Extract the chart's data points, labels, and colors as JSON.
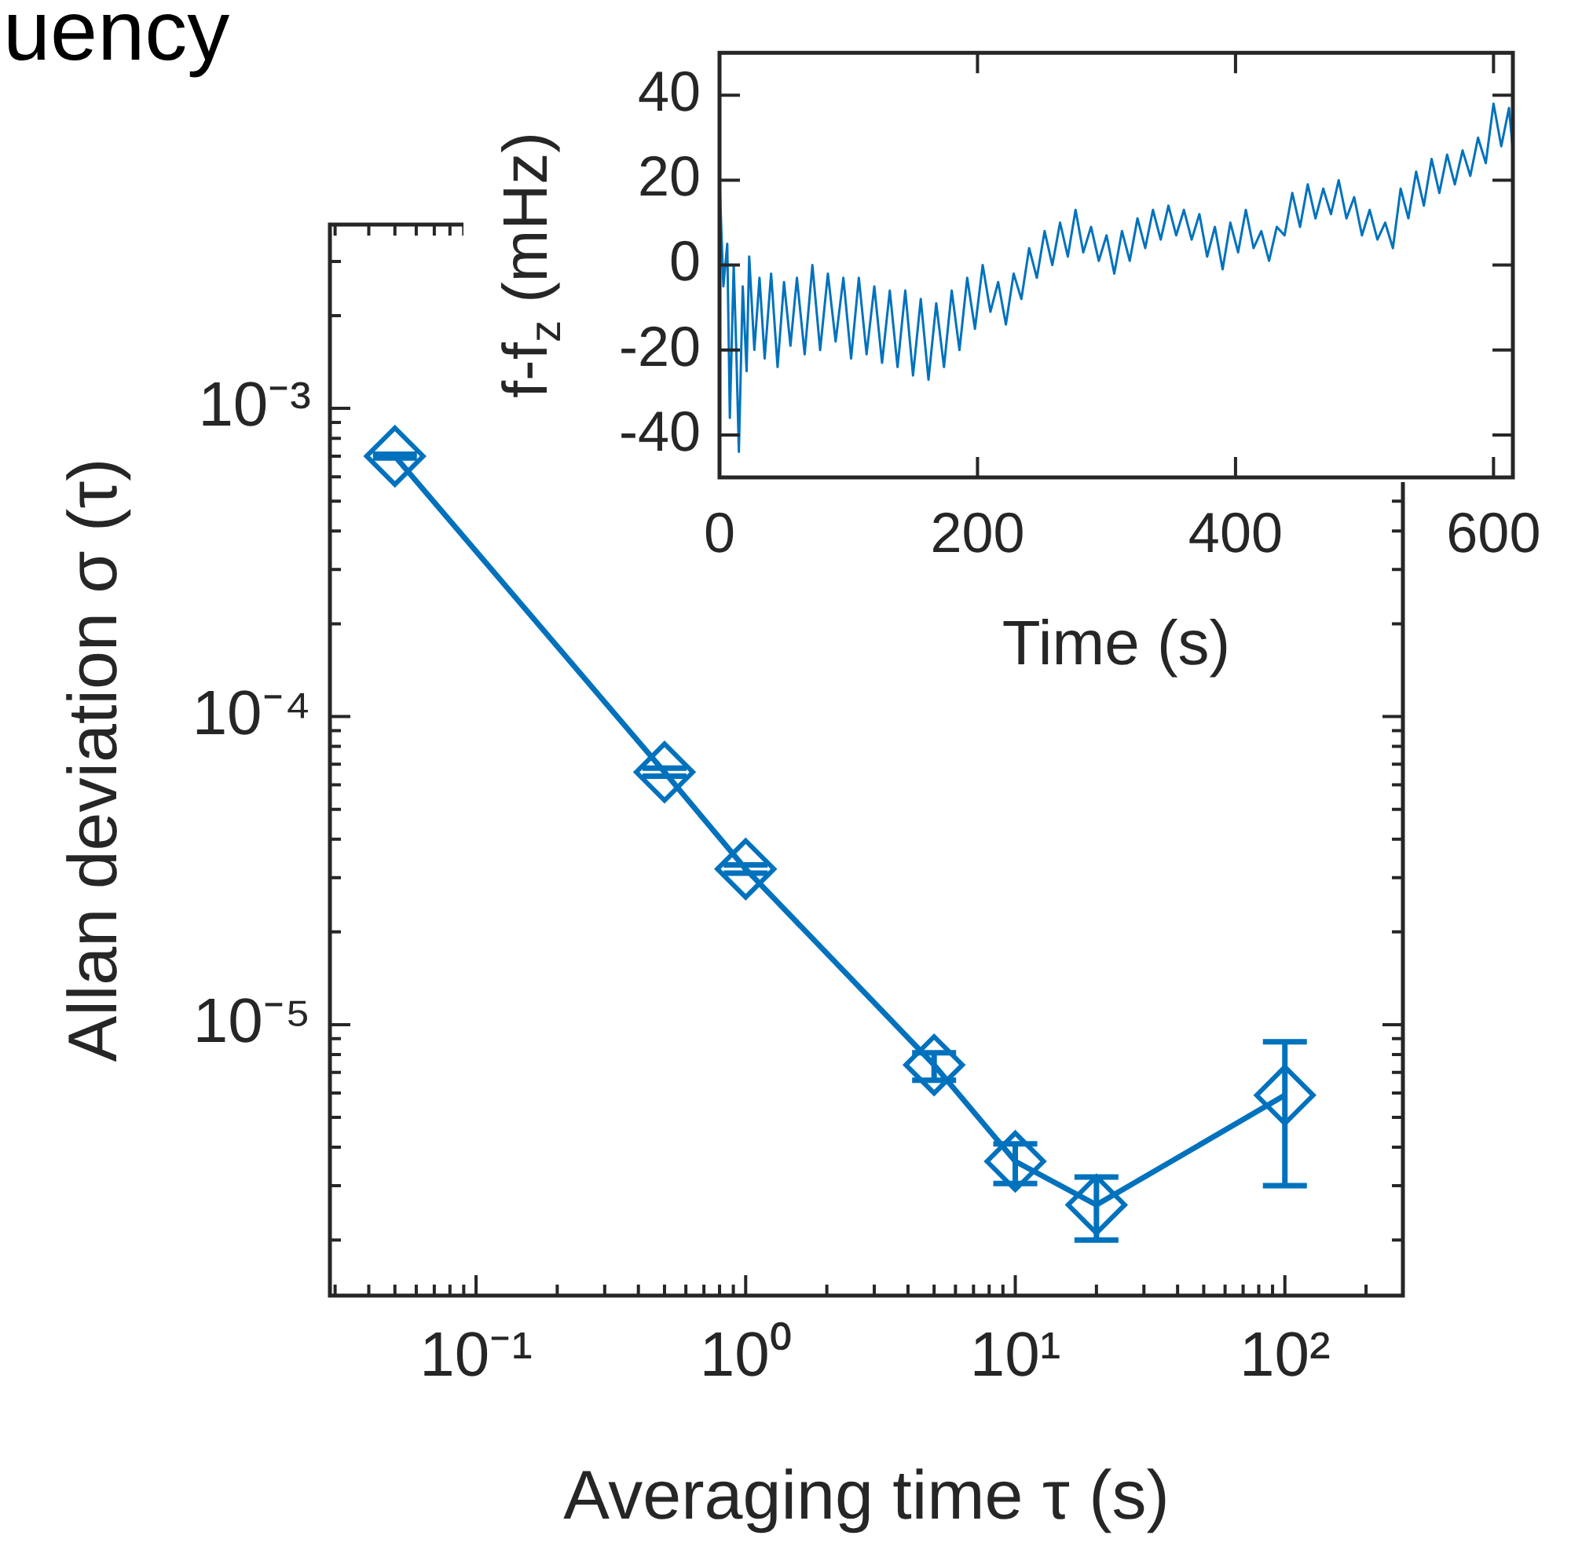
{
  "chart_data": [
    {
      "type": "line",
      "xlabel": "Averaging time τ (s)",
      "ylabel": "Allan deviation σ (τ)",
      "annotations": [
        "uency"
      ],
      "x": [
        0.05,
        0.5,
        1,
        5,
        10,
        20,
        100
      ],
      "series": [
        {
          "color": "#0072bd",
          "values": [
            0.0007,
            6.6e-05,
            3.2e-05,
            7.4e-06,
            3.6e-06,
            2.6e-06,
            5.9e-06
          ],
          "errors": [
            [
              0.00069,
              0.00071
            ],
            [
              6.4e-05,
              6.8e-05
            ],
            [
              3.1e-05,
              3.3e-05
            ],
            [
              6.6e-06,
              8.1e-06
            ],
            [
              3.05e-06,
              4.1e-06
            ],
            [
              2e-06,
              3.2e-06
            ],
            [
              3e-06,
              8.8e-06
            ]
          ]
        }
      ],
      "log": "xy",
      "marker": "diamond",
      "grid": false,
      "legend": false,
      "xlim": [
        0.0287,
        274
      ],
      "ylim": [
        1.32e-06,
        0.00395
      ],
      "xticks": [
        {
          "value": 0.03,
          "label": null
        },
        {
          "value": 0.04,
          "label": null
        },
        {
          "value": 0.05,
          "label": null
        },
        {
          "value": 0.06,
          "label": null
        },
        {
          "value": 0.07,
          "label": null
        },
        {
          "value": 0.08,
          "label": null
        },
        {
          "value": 0.09,
          "label": null
        },
        {
          "value": 0.1,
          "label": "10⁻¹"
        },
        {
          "value": 0.2,
          "label": null
        },
        {
          "value": 0.3,
          "label": null
        },
        {
          "value": 0.4,
          "label": null
        },
        {
          "value": 0.5,
          "label": null
        },
        {
          "value": 0.6,
          "label": null
        },
        {
          "value": 0.7,
          "label": null
        },
        {
          "value": 0.8,
          "label": null
        },
        {
          "value": 0.9,
          "label": null
        },
        {
          "value": 1,
          "label": "10⁰"
        },
        {
          "value": 2,
          "label": null
        },
        {
          "value": 3,
          "label": null
        },
        {
          "value": 4,
          "label": null
        },
        {
          "value": 5,
          "label": null
        },
        {
          "value": 6,
          "label": null
        },
        {
          "value": 7,
          "label": null
        },
        {
          "value": 8,
          "label": null
        },
        {
          "value": 9,
          "label": null
        },
        {
          "value": 10,
          "label": "10¹"
        },
        {
          "value": 20,
          "label": null
        },
        {
          "value": 30,
          "label": null
        },
        {
          "value": 40,
          "label": null
        },
        {
          "value": 50,
          "label": null
        },
        {
          "value": 60,
          "label": null
        },
        {
          "value": 70,
          "label": null
        },
        {
          "value": 80,
          "label": null
        },
        {
          "value": 90,
          "label": null
        },
        {
          "value": 100,
          "label": "10²"
        },
        {
          "value": 200,
          "label": null
        }
      ],
      "yticks": [
        {
          "value": 2e-06,
          "label": null
        },
        {
          "value": 3e-06,
          "label": null
        },
        {
          "value": 4e-06,
          "label": null
        },
        {
          "value": 5e-06,
          "label": null
        },
        {
          "value": 6e-06,
          "label": null
        },
        {
          "value": 7e-06,
          "label": null
        },
        {
          "value": 8e-06,
          "label": null
        },
        {
          "value": 9e-06,
          "label": null
        },
        {
          "value": 1e-05,
          "label": "10⁻⁵"
        },
        {
          "value": 2e-05,
          "label": null
        },
        {
          "value": 3e-05,
          "label": null
        },
        {
          "value": 4e-05,
          "label": null
        },
        {
          "value": 5e-05,
          "label": null
        },
        {
          "value": 6e-05,
          "label": null
        },
        {
          "value": 7e-05,
          "label": null
        },
        {
          "value": 8e-05,
          "label": null
        },
        {
          "value": 9e-05,
          "label": null
        },
        {
          "value": 0.0001,
          "label": "10⁻⁴"
        },
        {
          "value": 0.0002,
          "label": null
        },
        {
          "value": 0.0003,
          "label": null
        },
        {
          "value": 0.0004,
          "label": null
        },
        {
          "value": 0.0005,
          "label": null
        },
        {
          "value": 0.0006,
          "label": null
        },
        {
          "value": 0.0007,
          "label": null
        },
        {
          "value": 0.0008,
          "label": null
        },
        {
          "value": 0.0009,
          "label": null
        },
        {
          "value": 0.001,
          "label": "10⁻³"
        },
        {
          "value": 0.002,
          "label": null
        },
        {
          "value": 0.003,
          "label": null
        }
      ]
    },
    {
      "type": "line",
      "xlabel": "Time (s)",
      "ylabel": "f-f$_{z}$ (mHz)",
      "marker": "none",
      "grid": false,
      "legend": false,
      "xlim": [
        0,
        615
      ],
      "ylim": [
        -50,
        50
      ],
      "xticks": [
        0,
        200,
        400,
        600
      ],
      "yticks": [
        -40,
        -20,
        0,
        20,
        40
      ],
      "x": [
        0,
        3,
        6,
        8,
        11,
        13,
        15,
        18,
        21,
        23,
        27,
        31,
        35,
        40,
        45,
        50,
        55,
        60,
        66,
        72,
        78,
        84,
        90,
        96,
        102,
        108,
        114,
        120,
        126,
        132,
        138,
        144,
        150,
        156,
        162,
        168,
        174,
        180,
        186,
        192,
        198,
        204,
        210,
        216,
        222,
        228,
        234,
        240,
        246,
        252,
        258,
        264,
        270,
        276,
        282,
        288,
        294,
        300,
        306,
        312,
        318,
        324,
        330,
        336,
        342,
        348,
        354,
        360,
        366,
        372,
        378,
        384,
        390,
        396,
        402,
        408,
        414,
        420,
        426,
        432,
        438,
        444,
        450,
        456,
        462,
        468,
        474,
        480,
        486,
        492,
        498,
        504,
        510,
        516,
        522,
        528,
        534,
        540,
        546,
        552,
        558,
        564,
        570,
        576,
        582,
        588,
        594,
        600,
        606,
        612,
        615
      ],
      "series": [
        {
          "color": "#0072bd",
          "values": [
            20,
            -5,
            5,
            -36,
            0,
            -20,
            -44,
            -5,
            -25,
            2,
            -20,
            -3,
            -22,
            -2,
            -24,
            -4,
            -19,
            -3,
            -21,
            0,
            -20,
            -2,
            -18,
            -3,
            -22,
            -3,
            -21,
            -5,
            -23,
            -6,
            -24,
            -6,
            -26,
            -8,
            -27,
            -9,
            -24,
            -6,
            -20,
            -3,
            -15,
            0,
            -11,
            -4,
            -14,
            -2,
            -8,
            4,
            -3,
            8,
            0,
            10,
            2,
            13,
            3,
            9,
            1,
            7,
            -2,
            8,
            1,
            11,
            4,
            13,
            6,
            14,
            7,
            13,
            6,
            12,
            2,
            9,
            -1,
            10,
            3,
            13,
            4,
            8,
            1,
            9,
            7,
            17,
            9,
            19,
            11,
            18,
            12,
            20,
            11,
            16,
            7,
            13,
            6,
            10,
            4,
            18,
            11,
            22,
            14,
            25,
            17,
            26,
            19,
            27,
            21,
            30,
            24,
            38,
            28,
            37,
            27
          ]
        }
      ]
    }
  ]
}
